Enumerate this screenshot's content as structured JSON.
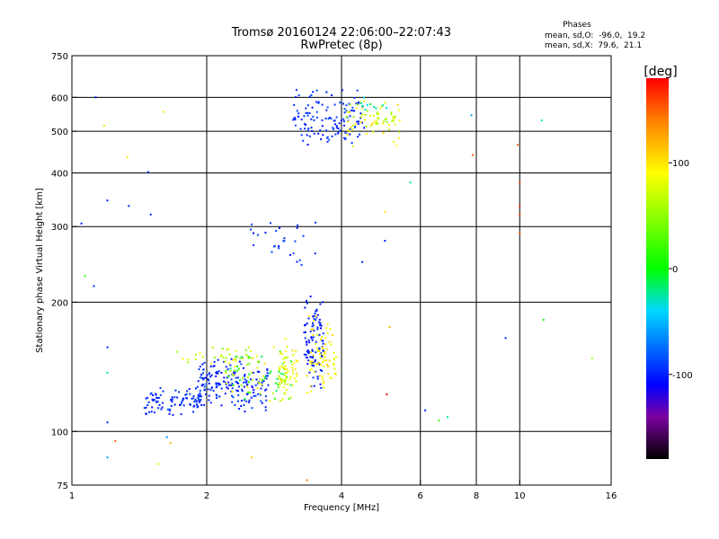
{
  "chart_data": {
    "type": "scatter",
    "title": "Tromsø 20160124 22:06:00–22:07:43",
    "subtitle": "RwPretec (8p)",
    "stats": {
      "heading": "Phases",
      "line1": "mean, sd,O:  -96.0,  19.2",
      "line2": "mean, sd,X:  79.6,  21.1"
    },
    "xlabel": "Frequency [MHz]",
    "ylabel": "Stationary phase Virtual Height [km]",
    "x_scale": "log",
    "y_scale": "log",
    "xlim": [
      1,
      16
    ],
    "ylim": [
      75,
      750
    ],
    "x_ticks": [
      {
        "v": 1,
        "label": "1"
      },
      {
        "v": 2,
        "label": "2"
      },
      {
        "v": 4,
        "label": "4"
      },
      {
        "v": 6,
        "label": "6"
      },
      {
        "v": 8,
        "label": "8"
      },
      {
        "v": 10,
        "label": "10"
      },
      {
        "v": 16,
        "label": "16"
      }
    ],
    "x_grid": [
      1,
      2,
      4,
      6,
      8,
      10,
      16
    ],
    "y_ticks": [
      {
        "v": 75,
        "label": "75"
      },
      {
        "v": 100,
        "label": "100"
      },
      {
        "v": 200,
        "label": "200"
      },
      {
        "v": 300,
        "label": "300"
      },
      {
        "v": 400,
        "label": "400"
      },
      {
        "v": 500,
        "label": "500"
      },
      {
        "v": 600,
        "label": "600"
      },
      {
        "v": 750,
        "label": "750"
      }
    ],
    "y_grid": [
      75,
      100,
      200,
      300,
      400,
      500,
      600,
      750
    ],
    "grid": true,
    "colorbar": {
      "label": "[deg]",
      "range": [
        -180,
        180
      ],
      "ticks": [
        {
          "v": 100,
          "label": "100"
        },
        {
          "v": 0,
          "label": "0"
        },
        {
          "v": -100,
          "label": "-100"
        }
      ],
      "stops": [
        {
          "v": -180,
          "color": "#000000"
        },
        {
          "v": -140,
          "color": "#7a00a0"
        },
        {
          "v": -110,
          "color": "#0000ff"
        },
        {
          "v": -40,
          "color": "#00d8ff"
        },
        {
          "v": 0,
          "color": "#00ff00"
        },
        {
          "v": 90,
          "color": "#ffff00"
        },
        {
          "v": 140,
          "color": "#ff8000"
        },
        {
          "v": 180,
          "color": "#ff0000"
        }
      ]
    },
    "series": [
      {
        "clusters": [
          {
            "x": [
              1.45,
              1.95
            ],
            "y": [
              108,
              128
            ],
            "phase": [
              -108,
              -85
            ],
            "n": 90
          },
          {
            "x": [
              1.9,
              2.75
            ],
            "y": [
              110,
              150
            ],
            "phase": [
              -108,
              -85
            ],
            "n": 180
          },
          {
            "x": [
              2.2,
              3.1
            ],
            "y": [
              112,
              160
            ],
            "phase": [
              -20,
              105
            ],
            "n": 80
          },
          {
            "x": [
              1.7,
              2.6
            ],
            "y": [
              138,
              160
            ],
            "phase": [
              40,
              100
            ],
            "n": 30
          },
          {
            "x": [
              2.9,
              3.2
            ],
            "y": [
              118,
              165
            ],
            "phase": [
              60,
              110
            ],
            "n": 60
          },
          {
            "x": [
              3.3,
              3.65
            ],
            "y": [
              125,
              210
            ],
            "phase": [
              -110,
              -90
            ],
            "n": 100
          },
          {
            "x": [
              3.35,
              3.9
            ],
            "y": [
              120,
              190
            ],
            "phase": [
              75,
              110
            ],
            "n": 75
          },
          {
            "x": [
              2.5,
              3.5
            ],
            "y": [
              235,
              310
            ],
            "phase": [
              -110,
              -80
            ],
            "n": 28
          },
          {
            "x": [
              3.1,
              4.5
            ],
            "y": [
              450,
              640
            ],
            "phase": [
              -110,
              -85
            ],
            "n": 130
          },
          {
            "x": [
              4.1,
              5.4
            ],
            "y": [
              460,
              600
            ],
            "phase": [
              50,
              110
            ],
            "n": 70
          },
          {
            "x": [
              4.4,
              5.2
            ],
            "y": [
              540,
              610
            ],
            "phase": [
              -40,
              0
            ],
            "n": 10
          }
        ],
        "points": [
          {
            "x": 1.05,
            "y": 305,
            "phase": -100
          },
          {
            "x": 1.13,
            "y": 600,
            "phase": -100
          },
          {
            "x": 1.12,
            "y": 218,
            "phase": -100
          },
          {
            "x": 1.07,
            "y": 230,
            "phase": 20
          },
          {
            "x": 1.18,
            "y": 515,
            "phase": 100
          },
          {
            "x": 1.2,
            "y": 345,
            "phase": -100
          },
          {
            "x": 1.2,
            "y": 157,
            "phase": -100
          },
          {
            "x": 1.2,
            "y": 137,
            "phase": -30
          },
          {
            "x": 1.2,
            "y": 105,
            "phase": -100
          },
          {
            "x": 1.2,
            "y": 87,
            "phase": -60
          },
          {
            "x": 1.25,
            "y": 95,
            "phase": 150
          },
          {
            "x": 1.33,
            "y": 435,
            "phase": 100
          },
          {
            "x": 1.34,
            "y": 335,
            "phase": -100
          },
          {
            "x": 1.48,
            "y": 402,
            "phase": -100
          },
          {
            "x": 1.5,
            "y": 320,
            "phase": -100
          },
          {
            "x": 1.56,
            "y": 84,
            "phase": 95
          },
          {
            "x": 1.6,
            "y": 555,
            "phase": 100
          },
          {
            "x": 1.63,
            "y": 97,
            "phase": -60
          },
          {
            "x": 1.66,
            "y": 94,
            "phase": 120
          },
          {
            "x": 2.52,
            "y": 87,
            "phase": 110
          },
          {
            "x": 3.35,
            "y": 77,
            "phase": 140
          },
          {
            "x": 4.45,
            "y": 248,
            "phase": -100
          },
          {
            "x": 5.0,
            "y": 325,
            "phase": 100
          },
          {
            "x": 5.0,
            "y": 278,
            "phase": -100
          },
          {
            "x": 5.05,
            "y": 122,
            "phase": 180
          },
          {
            "x": 5.12,
            "y": 175,
            "phase": 120
          },
          {
            "x": 5.7,
            "y": 380,
            "phase": -20
          },
          {
            "x": 6.15,
            "y": 112,
            "phase": -100
          },
          {
            "x": 6.6,
            "y": 106,
            "phase": 20
          },
          {
            "x": 6.9,
            "y": 108,
            "phase": -20
          },
          {
            "x": 7.8,
            "y": 545,
            "phase": -60
          },
          {
            "x": 7.85,
            "y": 440,
            "phase": 150
          },
          {
            "x": 9.3,
            "y": 165,
            "phase": -100
          },
          {
            "x": 9.9,
            "y": 465,
            "phase": 150
          },
          {
            "x": 10.0,
            "y": 380,
            "phase": 160
          },
          {
            "x": 10.0,
            "y": 335,
            "phase": 170
          },
          {
            "x": 10.0,
            "y": 320,
            "phase": 160
          },
          {
            "x": 10.0,
            "y": 290,
            "phase": 150
          },
          {
            "x": 11.2,
            "y": 530,
            "phase": -20
          },
          {
            "x": 11.3,
            "y": 182,
            "phase": 0
          },
          {
            "x": 14.5,
            "y": 148,
            "phase": 50
          }
        ]
      }
    ]
  }
}
